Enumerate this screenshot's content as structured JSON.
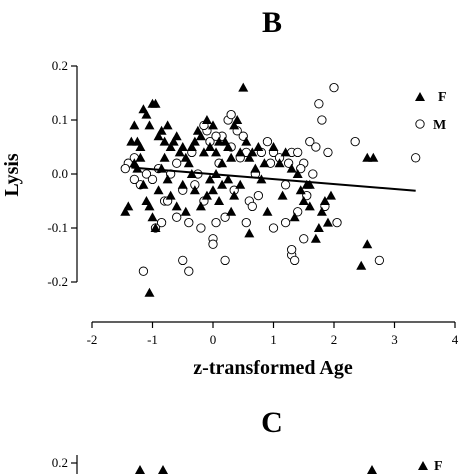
{
  "panels": {
    "top_letter": "B",
    "bottom_letter": "C"
  },
  "chart_data": [
    {
      "type": "scatter",
      "panel": "B",
      "xlabel": "z-transformed Age",
      "ylabel": "Lysis",
      "xlim": [
        -2,
        4
      ],
      "ylim": [
        -0.25,
        0.2
      ],
      "xticks": [
        "-2",
        "-1",
        "0",
        "1",
        "2",
        "3",
        "4"
      ],
      "yticks": [
        "-0.2",
        "-0.1",
        "0.0",
        "0.1",
        "0.2"
      ],
      "legend": {
        "placement": "top-right",
        "entries": [
          "F",
          "M"
        ]
      },
      "series": [
        {
          "name": "F",
          "marker": "filled-triangle",
          "points": [
            [
              -1.35,
              0.06
            ],
            [
              -1.3,
              0.09
            ],
            [
              -1.25,
              0.06
            ],
            [
              -1.2,
              0.05
            ],
            [
              -1.15,
              0.12
            ],
            [
              -1.1,
              0.11
            ],
            [
              -1.05,
              0.09
            ],
            [
              -1.0,
              0.13
            ],
            [
              -0.95,
              0.13
            ],
            [
              -0.9,
              0.07
            ],
            [
              -0.85,
              0.08
            ],
            [
              -0.8,
              0.06
            ],
            [
              -0.75,
              0.09
            ],
            [
              -0.7,
              0.05
            ],
            [
              -0.65,
              0.06
            ],
            [
              -0.6,
              0.07
            ],
            [
              -0.55,
              0.04
            ],
            [
              -0.5,
              0.05
            ],
            [
              -0.45,
              0.03
            ],
            [
              -0.4,
              0.02
            ],
            [
              -0.35,
              0.05
            ],
            [
              -0.3,
              0.06
            ],
            [
              -0.25,
              0.08
            ],
            [
              -0.2,
              0.07
            ],
            [
              -0.15,
              0.04
            ],
            [
              -0.1,
              0.1
            ],
            [
              -0.05,
              0.05
            ],
            [
              0.0,
              0.09
            ],
            [
              0.05,
              0.04
            ],
            [
              0.1,
              0.06
            ],
            [
              0.15,
              0.02
            ],
            [
              0.2,
              0.06
            ],
            [
              0.25,
              0.05
            ],
            [
              0.3,
              0.03
            ],
            [
              0.35,
              0.09
            ],
            [
              0.4,
              0.1
            ],
            [
              0.45,
              0.04
            ],
            [
              0.5,
              0.16
            ],
            [
              0.55,
              0.06
            ],
            [
              0.6,
              0.03
            ],
            [
              0.65,
              0.04
            ],
            [
              0.7,
              0.01
            ],
            [
              0.75,
              0.05
            ],
            [
              0.8,
              -0.01
            ],
            [
              0.85,
              0.02
            ],
            [
              1.0,
              0.05
            ],
            [
              1.1,
              0.02
            ],
            [
              1.2,
              0.04
            ],
            [
              1.3,
              0.01
            ],
            [
              1.4,
              0.0
            ],
            [
              1.45,
              -0.03
            ],
            [
              1.5,
              -0.05
            ],
            [
              1.55,
              -0.02
            ],
            [
              1.6,
              -0.06
            ],
            [
              1.7,
              -0.12
            ],
            [
              1.75,
              -0.1
            ],
            [
              1.8,
              -0.07
            ],
            [
              1.85,
              -0.05
            ],
            [
              1.9,
              -0.09
            ],
            [
              1.95,
              -0.04
            ],
            [
              -1.45,
              -0.07
            ],
            [
              -1.4,
              -0.06
            ],
            [
              -1.3,
              0.02
            ],
            [
              -1.25,
              0.01
            ],
            [
              -1.2,
              0.03
            ],
            [
              -1.15,
              -0.02
            ],
            [
              -1.1,
              -0.05
            ],
            [
              -1.05,
              -0.06
            ],
            [
              -1.0,
              -0.08
            ],
            [
              -0.95,
              -0.1
            ],
            [
              -0.9,
              -0.03
            ],
            [
              -0.85,
              0.01
            ],
            [
              -0.8,
              0.03
            ],
            [
              -0.75,
              -0.01
            ],
            [
              -0.7,
              -0.04
            ],
            [
              -0.6,
              -0.06
            ],
            [
              -0.5,
              -0.02
            ],
            [
              -0.45,
              -0.07
            ],
            [
              -0.35,
              0.0
            ],
            [
              -0.3,
              -0.03
            ],
            [
              -0.2,
              -0.06
            ],
            [
              -0.1,
              -0.04
            ],
            [
              -0.05,
              -0.01
            ],
            [
              0.0,
              -0.03
            ],
            [
              0.05,
              0.0
            ],
            [
              0.1,
              -0.05
            ],
            [
              0.15,
              -0.02
            ],
            [
              0.25,
              -0.01
            ],
            [
              0.3,
              -0.07
            ],
            [
              0.35,
              -0.04
            ],
            [
              0.45,
              -0.02
            ],
            [
              0.6,
              -0.11
            ],
            [
              0.9,
              -0.07
            ],
            [
              1.15,
              -0.04
            ],
            [
              1.35,
              -0.08
            ],
            [
              -1.05,
              -0.22
            ],
            [
              2.45,
              -0.17
            ],
            [
              2.55,
              -0.13
            ],
            [
              2.55,
              0.03
            ],
            [
              2.65,
              0.03
            ],
            [
              1.6,
              -0.02
            ]
          ]
        },
        {
          "name": "M",
          "marker": "open-circle",
          "points": [
            [
              -1.4,
              0.02
            ],
            [
              -1.3,
              0.03
            ],
            [
              -1.2,
              -0.02
            ],
            [
              -1.1,
              0.0
            ],
            [
              -1.0,
              -0.01
            ],
            [
              -0.9,
              0.01
            ],
            [
              -0.8,
              -0.05
            ],
            [
              -0.7,
              0.0
            ],
            [
              -0.6,
              -0.08
            ],
            [
              -0.5,
              -0.03
            ],
            [
              -0.4,
              -0.09
            ],
            [
              -0.35,
              0.04
            ],
            [
              -0.3,
              -0.02
            ],
            [
              -0.2,
              -0.1
            ],
            [
              -0.15,
              -0.05
            ],
            [
              -0.1,
              0.08
            ],
            [
              -0.05,
              0.06
            ],
            [
              0.0,
              -0.12
            ],
            [
              0.05,
              -0.09
            ],
            [
              0.1,
              0.02
            ],
            [
              0.15,
              0.07
            ],
            [
              0.2,
              -0.08
            ],
            [
              0.25,
              0.1
            ],
            [
              0.3,
              0.11
            ],
            [
              0.35,
              -0.03
            ],
            [
              0.4,
              0.08
            ],
            [
              0.5,
              0.07
            ],
            [
              0.6,
              -0.05
            ],
            [
              0.7,
              0.0
            ],
            [
              0.8,
              0.04
            ],
            [
              0.9,
              0.06
            ],
            [
              1.0,
              0.04
            ],
            [
              1.1,
              0.03
            ],
            [
              1.2,
              -0.02
            ],
            [
              1.3,
              0.04
            ],
            [
              1.4,
              0.04
            ],
            [
              1.5,
              0.02
            ],
            [
              1.6,
              0.06
            ],
            [
              1.7,
              0.05
            ],
            [
              1.8,
              0.1
            ],
            [
              1.9,
              0.04
            ],
            [
              2.0,
              0.16
            ],
            [
              2.05,
              -0.09
            ],
            [
              1.75,
              0.13
            ],
            [
              2.35,
              0.06
            ],
            [
              2.75,
              -0.16
            ],
            [
              3.35,
              0.03
            ],
            [
              -1.15,
              -0.18
            ],
            [
              -0.5,
              -0.16
            ],
            [
              -0.4,
              -0.18
            ],
            [
              0.2,
              -0.16
            ],
            [
              1.3,
              -0.15
            ],
            [
              1.35,
              -0.16
            ],
            [
              1.5,
              -0.12
            ],
            [
              1.3,
              -0.14
            ],
            [
              0.0,
              -0.13
            ],
            [
              -0.6,
              0.02
            ],
            [
              -0.25,
              0.0
            ],
            [
              0.45,
              0.03
            ],
            [
              0.05,
              0.07
            ],
            [
              -0.15,
              0.09
            ],
            [
              0.3,
              0.05
            ],
            [
              0.55,
              0.04
            ],
            [
              0.95,
              0.02
            ],
            [
              1.25,
              0.02
            ],
            [
              1.45,
              0.01
            ],
            [
              1.55,
              -0.04
            ],
            [
              1.65,
              0.0
            ],
            [
              1.85,
              -0.06
            ],
            [
              1.4,
              -0.07
            ],
            [
              1.2,
              -0.09
            ],
            [
              1.0,
              -0.1
            ],
            [
              0.75,
              -0.04
            ],
            [
              0.65,
              -0.06
            ],
            [
              0.55,
              -0.09
            ],
            [
              -0.75,
              -0.05
            ],
            [
              -0.85,
              -0.09
            ],
            [
              -0.95,
              -0.1
            ],
            [
              -1.3,
              -0.01
            ],
            [
              -1.45,
              0.01
            ]
          ]
        }
      ],
      "fit_line": {
        "x": [
          -1.35,
          3.35
        ],
        "y": [
          0.012,
          -0.031
        ]
      }
    },
    {
      "type": "scatter",
      "panel": "C",
      "partial": true,
      "ytick_visible": "0.2",
      "legend": {
        "placement": "top-right",
        "entries": [
          "F"
        ]
      }
    }
  ]
}
